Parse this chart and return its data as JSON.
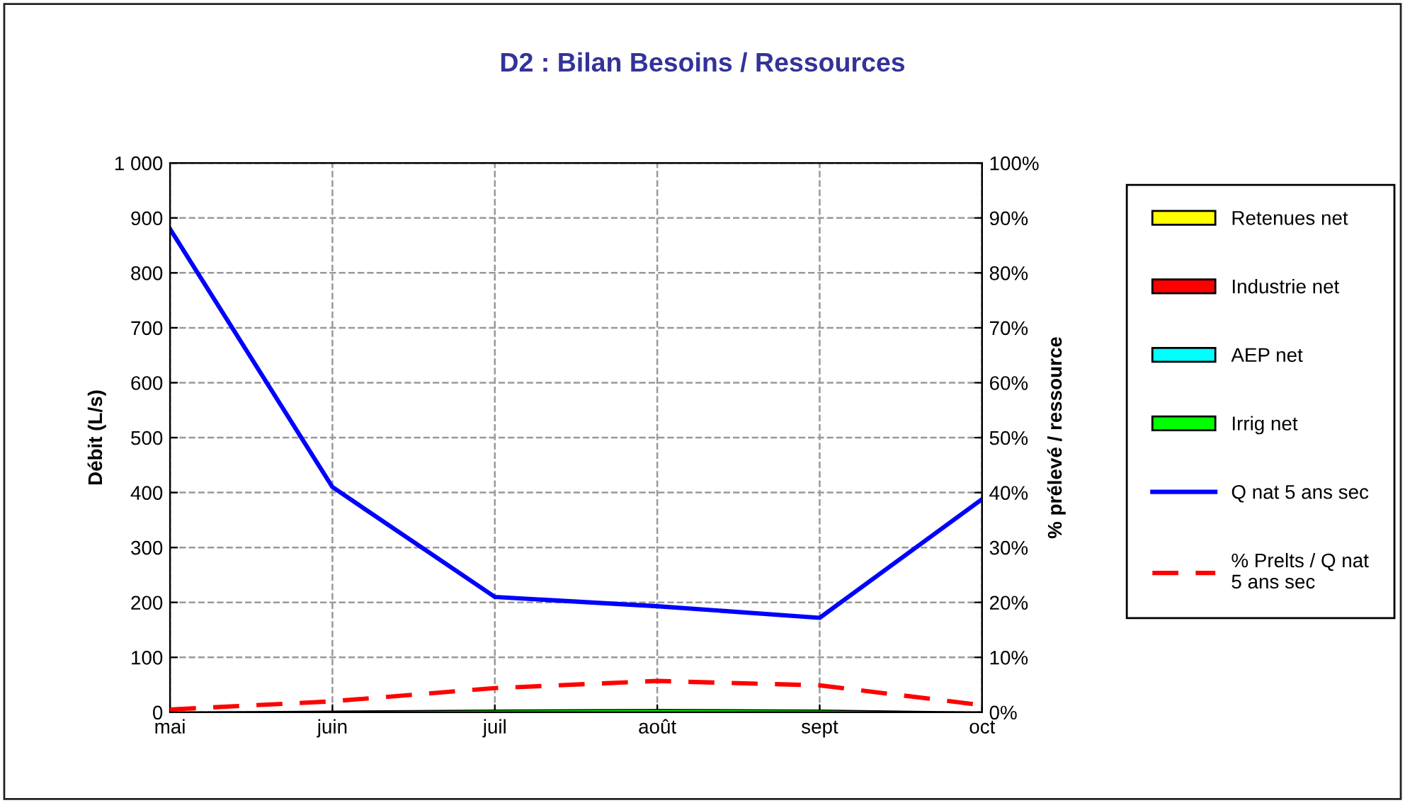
{
  "chart_data": {
    "type": "area",
    "title": "D2 : Bilan Besoins / Ressources",
    "ylabel": "Débit (L/s)",
    "y2label": "% prélevé / ressource",
    "categories": [
      "mai",
      "juin",
      "juil",
      "août",
      "sept",
      "oct"
    ],
    "series": [
      {
        "name": "Irrig net",
        "color": "#00ff00",
        "values": [
          0,
          2,
          4,
          5,
          4,
          0
        ]
      },
      {
        "name": "AEP net",
        "color": "#00ffff",
        "values": [
          null,
          null,
          null,
          null,
          null,
          null
        ]
      },
      {
        "name": "Industrie net",
        "color": "#ff0000",
        "values": [
          null,
          null,
          null,
          null,
          null,
          null
        ]
      },
      {
        "name": "Retenues net",
        "color": "#ffff00",
        "values": [
          null,
          null,
          null,
          null,
          null,
          null
        ]
      },
      {
        "name": "Q nat 5 ans sec",
        "type": "line",
        "color": "#0000ff",
        "line_style": "solid",
        "values": [
          880,
          410,
          210,
          193,
          172,
          388
        ]
      },
      {
        "name": "% Prelts / Q nat\n5 ans sec",
        "type": "line",
        "axis": "y2",
        "color": "#ff0000",
        "line_style": "dashed",
        "values": [
          0.5,
          2,
          4.4,
          5.7,
          4.9,
          1.3
        ]
      }
    ],
    "ylim": [
      0,
      1000
    ],
    "yticks": [
      0,
      100,
      200,
      300,
      400,
      500,
      600,
      700,
      800,
      900,
      {
        "value": 1000,
        "label": "1 000"
      }
    ],
    "y2lim": [
      0,
      100
    ],
    "y2ticks": [
      {
        "value": 0,
        "label": "0%"
      },
      {
        "value": 10,
        "label": "10%"
      },
      {
        "value": 20,
        "label": "20%"
      },
      {
        "value": 30,
        "label": "30%"
      },
      {
        "value": 40,
        "label": "40%"
      },
      {
        "value": 50,
        "label": "50%"
      },
      {
        "value": 60,
        "label": "60%"
      },
      {
        "value": 70,
        "label": "70%"
      },
      {
        "value": 80,
        "label": "80%"
      },
      {
        "value": 90,
        "label": "90%"
      },
      {
        "value": 100,
        "label": "100%"
      }
    ],
    "grid": true,
    "legend": "right"
  }
}
